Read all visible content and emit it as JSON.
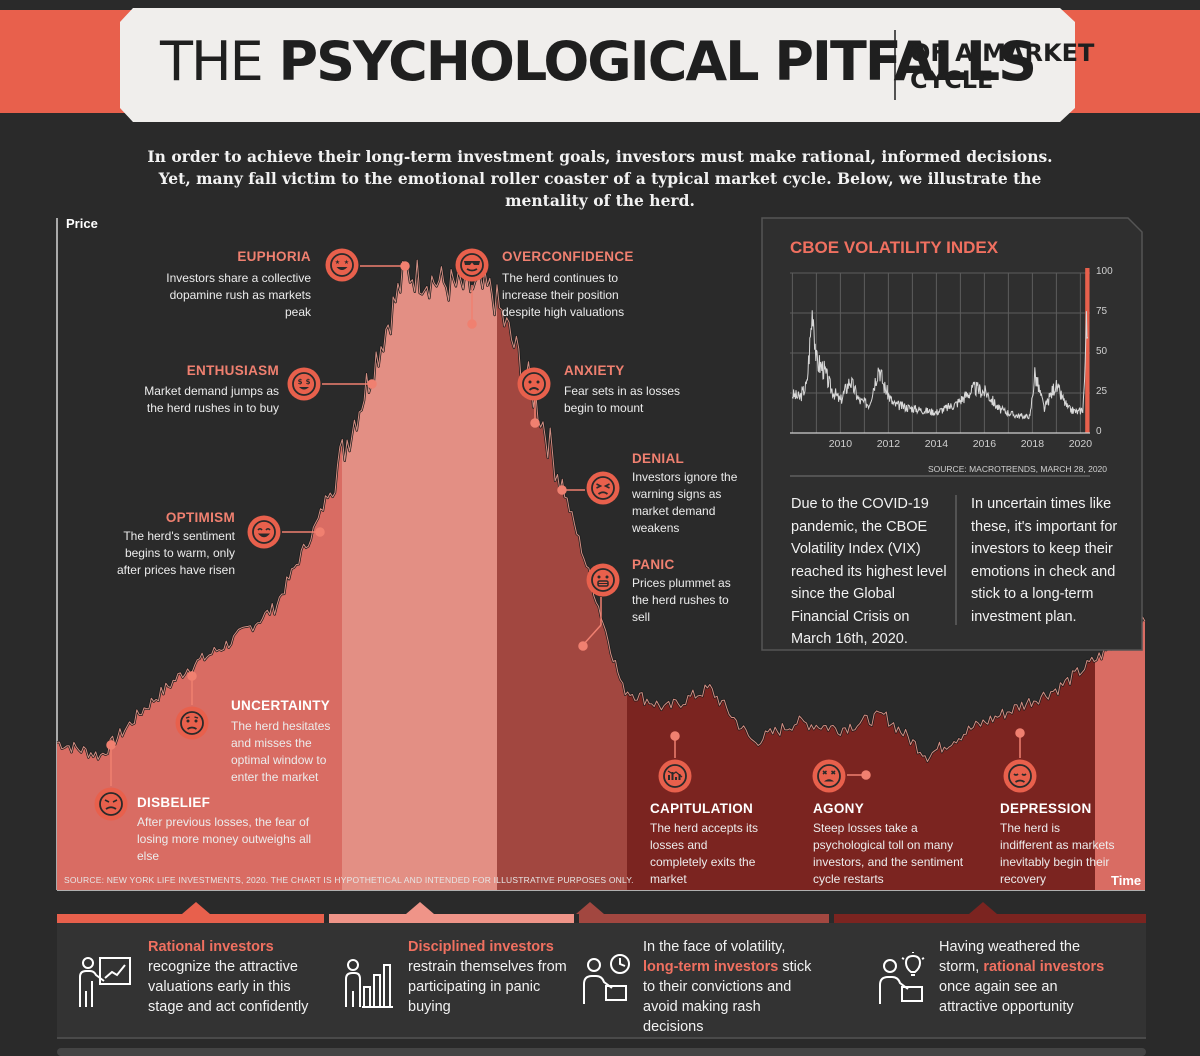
{
  "title": {
    "the": "THE",
    "main": "PSYCHOLOGICAL PITFALLS",
    "sub1": "OF A MARKET",
    "sub2": "CYCLE"
  },
  "intro": "In order to achieve their long-term investment goals, investors must make rational, informed decisions. Yet, many fall victim to the emotional roller coaster of a typical market cycle. Below, we illustrate the mentality of the herd.",
  "colors": {
    "accent": "#e8604c",
    "background": "#2a2a2a",
    "zone_light": "#d96c63",
    "zone_pink": "#e38f84",
    "zone_mid": "#a24740",
    "zone_dark": "#7b2420",
    "line": "#1a1a1a"
  },
  "axes": {
    "y": "Price",
    "x": "Time"
  },
  "stages": [
    {
      "name": "EUPHORIA",
      "desc": "Investors share a collective dopamine rush as markets peak",
      "icon": "star-eyes-face-icon"
    },
    {
      "name": "OVERCONFIDENCE",
      "desc": "The herd continues to increase their position despite high valuations",
      "icon": "sunglasses-face-icon"
    },
    {
      "name": "ENTHUSIASM",
      "desc": "Market demand jumps as the herd rushes in to buy",
      "icon": "dollar-eyes-face-icon"
    },
    {
      "name": "ANXIETY",
      "desc": "Fear sets in as losses begin to mount",
      "icon": "worried-face-icon"
    },
    {
      "name": "DENIAL",
      "desc": "Investors ignore the warning signs as market demand weakens",
      "icon": "squint-face-icon"
    },
    {
      "name": "OPTIMISM",
      "desc": "The herd's sentiment begins to warm, only after prices have risen",
      "icon": "grin-face-icon"
    },
    {
      "name": "PANIC",
      "desc": "Prices plummet as the herd rushes to sell",
      "icon": "scream-face-icon"
    },
    {
      "name": "UNCERTAINTY",
      "desc": "The herd hesitates and misses the optimal window to enter the market",
      "icon": "confused-face-icon"
    },
    {
      "name": "DISBELIEF",
      "desc": "After previous losses, the fear of losing more money outweighs all else",
      "icon": "frown-face-icon"
    },
    {
      "name": "CAPITULATION",
      "desc": "The herd accepts its losses and completely exits the market",
      "icon": "chart-down-icon"
    },
    {
      "name": "AGONY",
      "desc": "Steep losses take a psychological toll on many investors, and the sentiment cycle restarts",
      "icon": "tired-face-icon"
    },
    {
      "name": "DEPRESSION",
      "desc": "The herd is indifferent as markets inevitably begin their recovery",
      "icon": "sad-face-icon"
    }
  ],
  "chart_source": "SOURCE: NEW YORK LIFE INVESTMENTS, 2020. THE CHART IS HYPOTHETICAL AND INTENDED FOR ILLUSTRATIVE PURPOSES ONLY.",
  "vix": {
    "title": "CBOE VOLATILITY INDEX",
    "source": "SOURCE: MACROTRENDS, MARCH 28, 2020",
    "text_left": "Due to the COVID-19 pandemic, the CBOE Volatility Index (VIX) reached its highest level since the Global Financial Crisis on March 16th, 2020.",
    "text_right": "In uncertain times like these, it's important for investors to keep their emotions in check and stick to a long-term investment plan."
  },
  "bottom": [
    {
      "hl": "Rational investors",
      "rest": "recognize the attractive valuations early in this stage and act confidently",
      "icon": "presenter-chart-icon"
    },
    {
      "hl": "Disciplined investors",
      "rest": "restrain themselves from participating in panic buying",
      "icon": "person-bars-icon"
    },
    {
      "pre": "In the face of volatility,",
      "hl": "long-term investors",
      "rest": "stick to their convictions and avoid making rash decisions",
      "icon": "clock-person-icon"
    },
    {
      "pre": "Having weathered the storm,",
      "hl": "rational investors",
      "rest": "once again see an attractive opportunity",
      "icon": "idea-person-icon"
    }
  ],
  "chart_data": [
    {
      "type": "line",
      "title": "",
      "xlabel": "Time",
      "ylabel": "Price",
      "note": "hypothetical market cycle",
      "x": [
        0,
        4,
        8,
        12,
        16,
        20,
        24,
        28,
        32,
        36,
        40,
        44,
        48,
        52,
        56,
        60,
        64,
        68,
        72,
        76,
        80,
        84,
        88,
        92,
        96,
        100
      ],
      "y": [
        22,
        20,
        27,
        33,
        37,
        42,
        55,
        73,
        92,
        90,
        89,
        73,
        52,
        30,
        27,
        30,
        22,
        25,
        24,
        26,
        20,
        24,
        27,
        30,
        35,
        40
      ],
      "annotations": [
        "DISBELIEF",
        "UNCERTAINTY",
        "OPTIMISM",
        "ENTHUSIASM",
        "EUPHORIA",
        "OVERCONFIDENCE",
        "ANXIETY",
        "DENIAL",
        "PANIC",
        "CAPITULATION",
        "AGONY",
        "DEPRESSION"
      ]
    },
    {
      "type": "line",
      "title": "CBOE VOLATILITY INDEX",
      "xlabel": "",
      "ylabel": "",
      "x_ticks": [
        "2010",
        "2012",
        "2014",
        "2016",
        "2018",
        "2020"
      ],
      "y_ticks": [
        "0",
        "25",
        "50",
        "75",
        "100"
      ],
      "xlim": [
        2007.9,
        2020.4
      ],
      "ylim": [
        0,
        100
      ],
      "grid": true,
      "x": [
        2008.0,
        2008.3,
        2008.6,
        2008.8,
        2008.85,
        2009.0,
        2009.3,
        2009.6,
        2010.0,
        2010.4,
        2010.8,
        2011.2,
        2011.6,
        2011.8,
        2012.2,
        2012.8,
        2013.5,
        2014.0,
        2014.8,
        2015.6,
        2016.1,
        2016.6,
        2017.3,
        2017.9,
        2018.1,
        2018.5,
        2018.95,
        2019.5,
        2019.9,
        2020.1,
        2020.2,
        2020.25,
        2020.3
      ],
      "y": [
        24,
        22,
        30,
        70,
        80,
        45,
        40,
        28,
        20,
        33,
        20,
        18,
        42,
        30,
        18,
        16,
        14,
        13,
        18,
        28,
        25,
        15,
        11,
        10,
        37,
        15,
        30,
        15,
        13,
        15,
        40,
        82,
        60
      ]
    }
  ]
}
